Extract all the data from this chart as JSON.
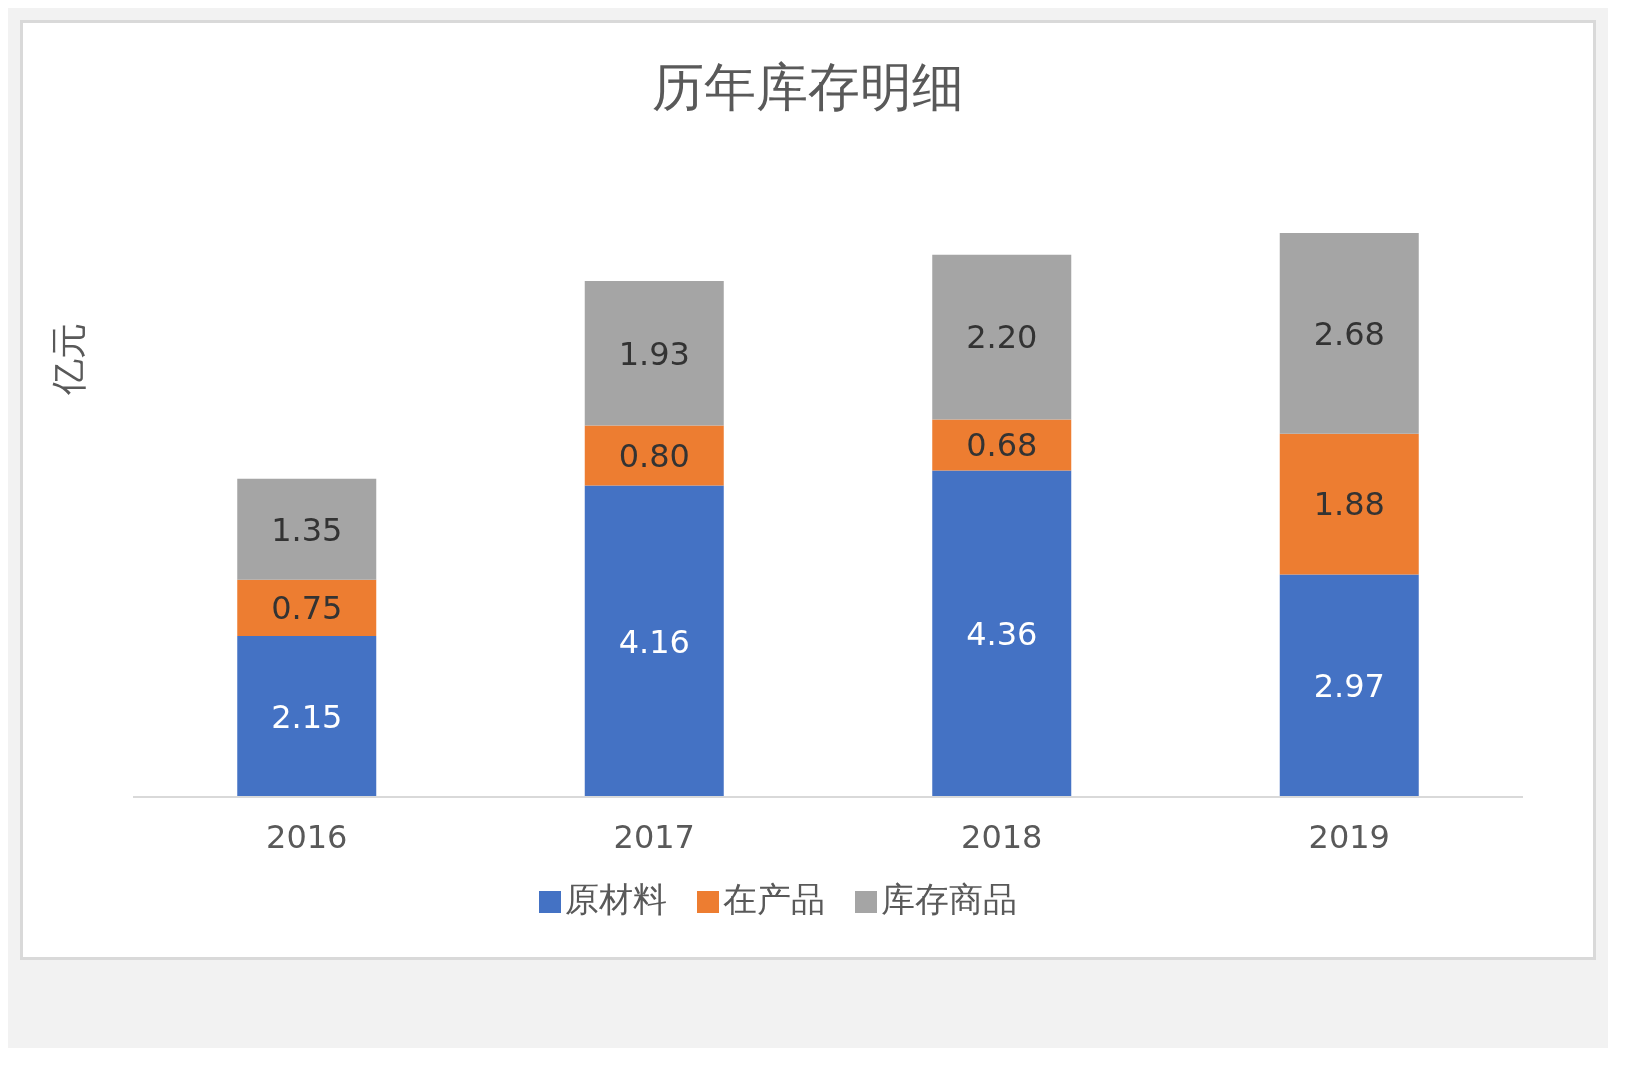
{
  "chart_data": {
    "type": "bar",
    "title": "历年库存明细",
    "ylabel": "亿元",
    "categories": [
      "2016",
      "2017",
      "2018",
      "2019"
    ],
    "stacked": true,
    "legend": "bottom",
    "grid": false,
    "series": [
      {
        "name": "原材料",
        "color": "#4472c4",
        "values": [
          2.15,
          4.16,
          4.36,
          2.97
        ],
        "value_labels": [
          "2.15",
          "4.16",
          "4.36",
          "2.97"
        ]
      },
      {
        "name": "在产品",
        "color": "#ed7d31",
        "values": [
          0.75,
          0.8,
          0.68,
          1.88
        ],
        "value_labels": [
          "0.75",
          "0.80",
          "0.68",
          "1.88"
        ]
      },
      {
        "name": "库存商品",
        "color": "#a5a5a5",
        "values": [
          1.35,
          1.93,
          2.2,
          2.68
        ],
        "value_labels": [
          "1.35",
          "1.93",
          "2.20",
          "2.68"
        ]
      }
    ]
  }
}
